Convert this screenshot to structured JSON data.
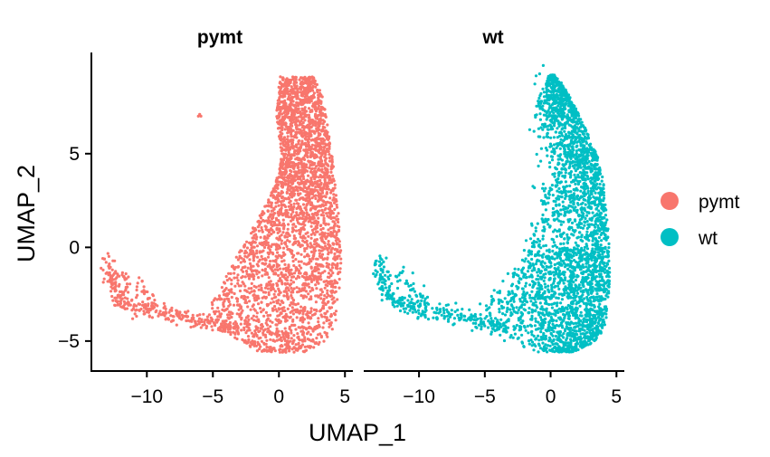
{
  "chart_data": {
    "type": "scatter",
    "xlabel": "UMAP_1",
    "ylabel": "UMAP_2",
    "xlim": [
      -14.2,
      5.6
    ],
    "ylim": [
      -6.6,
      10.4
    ],
    "x_ticks": [
      -10,
      -5,
      0,
      5
    ],
    "x_tick_labels": [
      "−10",
      "−5",
      "0",
      "5"
    ],
    "y_ticks": [
      -5,
      0,
      5
    ],
    "y_tick_labels": [
      "−5",
      "0",
      "5"
    ],
    "grid": false,
    "legend_position": "right",
    "panels": [
      {
        "title": "pymt",
        "series": "pymt",
        "color": "#F8766D",
        "islet": [
          [
            -6.0,
            7.1
          ],
          [
            -6.1,
            7.0
          ],
          [
            -5.9,
            7.0
          ]
        ],
        "shape": [
          [
            9.1,
            0.1,
            2.6
          ],
          [
            8.6,
            0.0,
            3.0
          ],
          [
            8.0,
            -0.1,
            3.3
          ],
          [
            7.0,
            -0.2,
            3.6
          ],
          [
            6.0,
            0.0,
            3.8
          ],
          [
            5.0,
            0.2,
            4.0
          ],
          [
            4.0,
            0.0,
            4.2
          ],
          [
            3.0,
            -0.5,
            4.3
          ],
          [
            2.0,
            -1.2,
            4.5
          ],
          [
            1.0,
            -2.0,
            4.6
          ],
          [
            0.0,
            -2.8,
            4.7
          ],
          [
            -1.0,
            -3.6,
            4.7
          ],
          [
            -2.0,
            -4.3,
            4.6
          ],
          [
            -3.0,
            -5.2,
            4.5
          ],
          [
            -4.0,
            -5.6,
            4.3
          ],
          [
            -4.6,
            -4.0,
            4.0
          ],
          [
            -5.2,
            -2.5,
            3.2
          ],
          [
            -5.6,
            -1.5,
            2.0
          ]
        ],
        "tail": [
          [
            -13.0,
            -0.6
          ],
          [
            -12.8,
            -1.3
          ],
          [
            -12.6,
            -2.0
          ],
          [
            -12.2,
            -2.7
          ],
          [
            -11.8,
            -3.0
          ],
          [
            -11.0,
            -3.2
          ],
          [
            -10.0,
            -3.4
          ],
          [
            -9.0,
            -3.4
          ],
          [
            -8.0,
            -3.6
          ],
          [
            -7.0,
            -3.8
          ],
          [
            -6.0,
            -3.9
          ],
          [
            -5.0,
            -4.0
          ],
          [
            -4.2,
            -4.1
          ],
          [
            -3.4,
            -4.3
          ]
        ],
        "tail_hook": [
          [
            -12.0,
            -1.4
          ],
          [
            -11.5,
            -2.0
          ],
          [
            -10.5,
            -2.2
          ],
          [
            -10.0,
            -2.6
          ],
          [
            -9.5,
            -3.0
          ]
        ]
      },
      {
        "title": "wt",
        "series": "wt",
        "color": "#00BFC4",
        "islet": [],
        "shape": [
          [
            9.2,
            -0.1,
            0.3
          ],
          [
            8.8,
            -0.5,
            0.8
          ],
          [
            8.0,
            -1.0,
            1.5
          ],
          [
            7.0,
            -1.3,
            2.2
          ],
          [
            6.0,
            -1.0,
            2.9
          ],
          [
            5.0,
            -0.6,
            3.5
          ],
          [
            4.0,
            -0.3,
            3.9
          ],
          [
            3.0,
            -0.6,
            4.1
          ],
          [
            2.0,
            -1.2,
            4.3
          ],
          [
            1.0,
            -2.0,
            4.4
          ],
          [
            0.0,
            -2.7,
            4.5
          ],
          [
            -1.0,
            -3.3,
            4.5
          ],
          [
            -2.0,
            -4.0,
            4.5
          ],
          [
            -3.0,
            -5.0,
            4.3
          ],
          [
            -4.0,
            -5.5,
            4.2
          ],
          [
            -4.7,
            -4.2,
            3.8
          ],
          [
            -5.3,
            -2.5,
            2.8
          ],
          [
            -5.6,
            -1.0,
            1.6
          ]
        ],
        "tail": [
          [
            -13.1,
            -0.6
          ],
          [
            -12.9,
            -1.3
          ],
          [
            -12.7,
            -1.9
          ],
          [
            -12.4,
            -2.5
          ],
          [
            -11.9,
            -2.9
          ],
          [
            -11.0,
            -3.1
          ],
          [
            -10.0,
            -3.3
          ],
          [
            -9.0,
            -3.4
          ],
          [
            -8.0,
            -3.5
          ],
          [
            -7.0,
            -3.6
          ],
          [
            -6.0,
            -3.8
          ],
          [
            -5.2,
            -4.0
          ],
          [
            -4.2,
            -4.2
          ],
          [
            -3.4,
            -4.4
          ]
        ],
        "tail_hook": [
          [
            -11.4,
            -1.6
          ],
          [
            -10.8,
            -2.0
          ],
          [
            -10.2,
            -2.4
          ],
          [
            -9.6,
            -2.8
          ]
        ],
        "sparse_left": [
          [
            -2.0,
            -2.5
          ],
          [
            -3.0,
            -2.8
          ],
          [
            -4.0,
            -3.0
          ],
          [
            -1.5,
            -1.5
          ],
          [
            -2.5,
            -2.0
          ],
          [
            -1.0,
            0.0
          ],
          [
            -0.8,
            1.5
          ],
          [
            -0.5,
            3.0
          ],
          [
            -0.3,
            4.5
          ],
          [
            -0.6,
            6.0
          ],
          [
            -0.4,
            7.5
          ],
          [
            -0.2,
            8.5
          ],
          [
            -1.2,
            -0.8
          ],
          [
            -3.5,
            -2.5
          ],
          [
            -5.0,
            -3.2
          ]
        ]
      }
    ],
    "legend": [
      {
        "label": "pymt",
        "color": "#F8766D"
      },
      {
        "label": "wt",
        "color": "#00BFC4"
      }
    ]
  }
}
